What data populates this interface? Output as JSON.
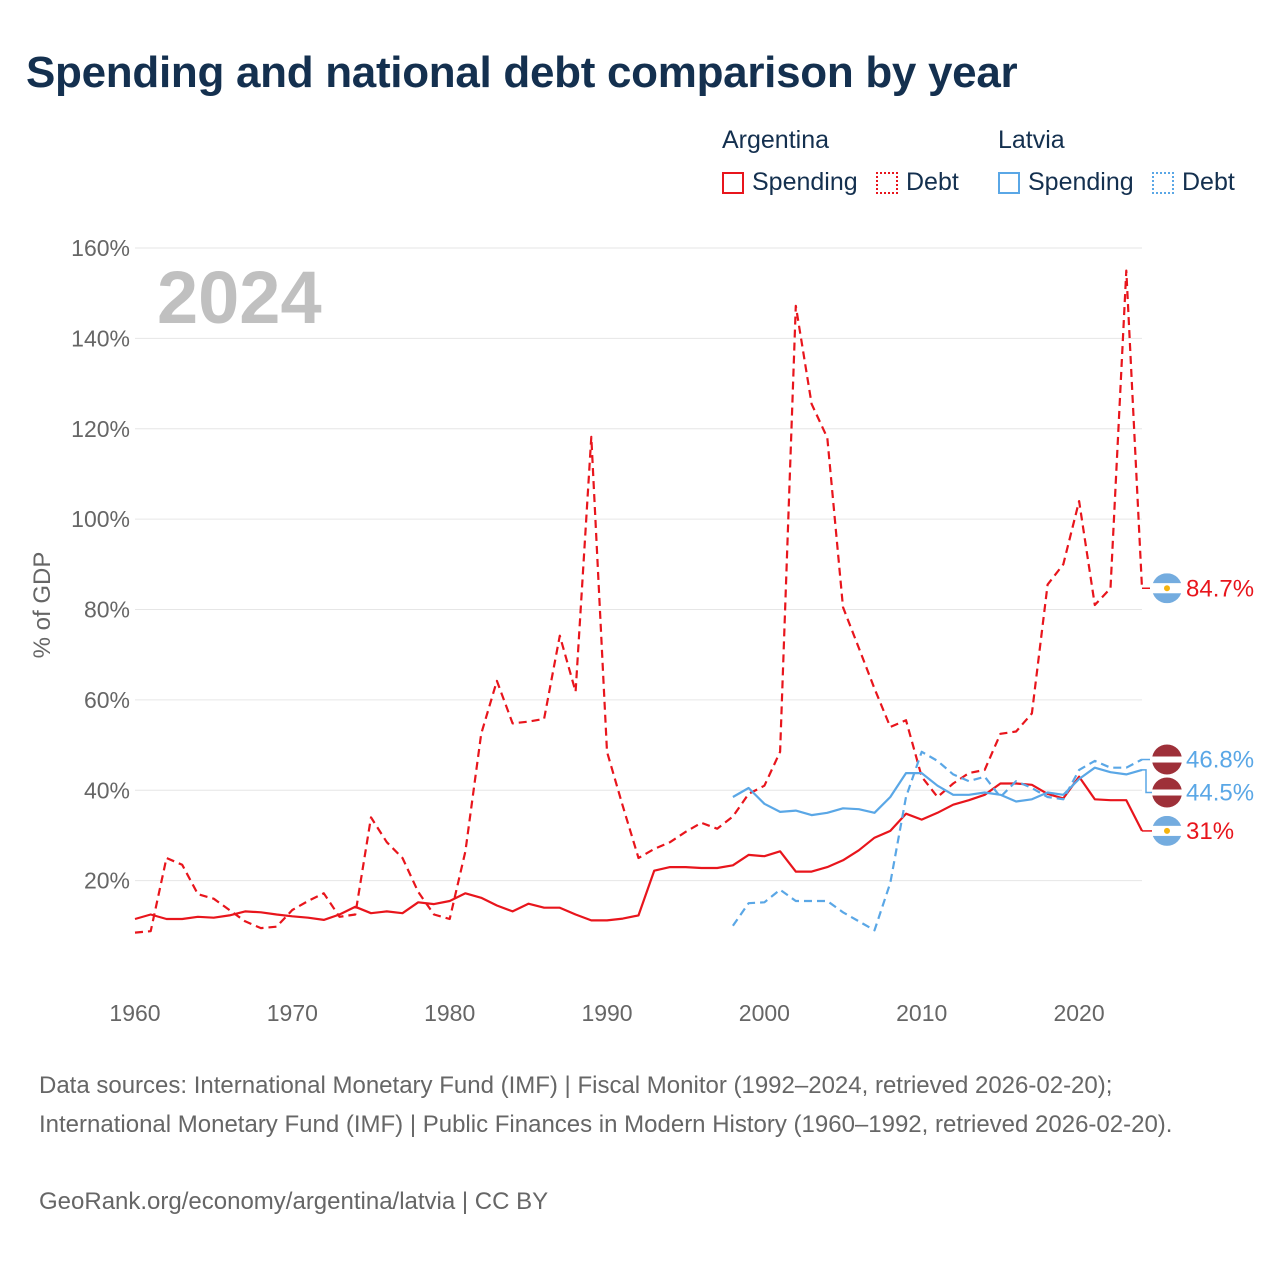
{
  "title": "Spending and national debt comparison by year",
  "legend": {
    "argentina": {
      "label": "Argentina",
      "spending": "Spending",
      "debt": "Debt"
    },
    "latvia": {
      "label": "Latvia",
      "spending": "Spending",
      "debt": "Debt"
    }
  },
  "colors": {
    "argentina": "#e8151c",
    "latvia": "#5aa7e6",
    "title": "#14304f",
    "year": "#c0c0c0",
    "grid": "#e6e6e6"
  },
  "year_overlay": "2024",
  "chart_data": {
    "type": "line",
    "title": "Spending and national debt comparison by year",
    "xlabel": "",
    "ylabel": "% of GDP",
    "xlim": [
      1960,
      2024
    ],
    "ylim": [
      0,
      160
    ],
    "x_ticks": [
      1960,
      1970,
      1980,
      1990,
      2000,
      2010,
      2020
    ],
    "y_ticks": [
      {
        "value": 20,
        "label": "20%"
      },
      {
        "value": 40,
        "label": "40%"
      },
      {
        "value": 60,
        "label": "60%"
      },
      {
        "value": 80,
        "label": "80%"
      },
      {
        "value": 100,
        "label": "100%"
      },
      {
        "value": 120,
        "label": "120%"
      },
      {
        "value": 140,
        "label": "140%"
      },
      {
        "value": 160,
        "label": "160%"
      }
    ],
    "grid": true,
    "legend_position": "top-right",
    "series": [
      {
        "name": "Argentina Spending",
        "country": "Argentina",
        "measure": "Spending",
        "style": "solid",
        "color": "#e8151c",
        "end_label": "31%",
        "x": [
          1960,
          1961,
          1962,
          1963,
          1964,
          1965,
          1966,
          1967,
          1968,
          1969,
          1970,
          1971,
          1972,
          1973,
          1974,
          1975,
          1976,
          1977,
          1978,
          1979,
          1980,
          1981,
          1982,
          1983,
          1984,
          1985,
          1986,
          1987,
          1988,
          1989,
          1990,
          1991,
          1992,
          1993,
          1994,
          1995,
          1996,
          1997,
          1998,
          1999,
          2000,
          2001,
          2002,
          2003,
          2004,
          2005,
          2006,
          2007,
          2008,
          2009,
          2010,
          2011,
          2012,
          2013,
          2014,
          2015,
          2016,
          2017,
          2018,
          2019,
          2020,
          2021,
          2022,
          2023,
          2024
        ],
        "y": [
          11.5,
          12.5,
          11.5,
          11.5,
          12,
          11.8,
          12.3,
          13.2,
          13,
          12.5,
          12.1,
          11.8,
          11.3,
          12.5,
          14.2,
          12.8,
          13.2,
          12.8,
          15.2,
          14.8,
          15.5,
          17.2,
          16.2,
          14.5,
          13.2,
          14.9,
          14,
          14,
          12.5,
          11.2,
          11.2,
          11.6,
          12.3,
          22.2,
          23,
          23,
          22.8,
          22.8,
          23.4,
          25.7,
          25.4,
          26.5,
          22,
          22,
          23,
          24.5,
          26.7,
          29.5,
          31,
          34.8,
          33.5,
          35,
          36.8,
          37.8,
          39,
          41.5,
          41.5,
          41.2,
          39.2,
          38.2,
          43,
          38,
          37.8,
          37.8,
          31
        ]
      },
      {
        "name": "Argentina Debt",
        "country": "Argentina",
        "measure": "Debt",
        "style": "dashed",
        "color": "#e8151c",
        "end_label": "84.7%",
        "x": [
          1960,
          1961,
          1962,
          1963,
          1964,
          1965,
          1966,
          1967,
          1968,
          1969,
          1970,
          1971,
          1972,
          1973,
          1974,
          1975,
          1976,
          1977,
          1978,
          1979,
          1980,
          1981,
          1982,
          1983,
          1984,
          1985,
          1986,
          1987,
          1988,
          1989,
          1990,
          1991,
          1992,
          1993,
          1994,
          1995,
          1996,
          1997,
          1998,
          1999,
          2000,
          2001,
          2002,
          2003,
          2004,
          2005,
          2006,
          2007,
          2008,
          2009,
          2010,
          2011,
          2012,
          2013,
          2014,
          2015,
          2016,
          2017,
          2018,
          2019,
          2020,
          2021,
          2022,
          2023,
          2024
        ],
        "y": [
          8.5,
          8.8,
          25,
          23.5,
          17,
          16,
          13.5,
          11,
          9.5,
          9.8,
          13.5,
          15.5,
          17.2,
          12,
          12.5,
          34,
          28.5,
          25,
          17.5,
          12.5,
          11.5,
          26.5,
          52.5,
          64.2,
          54.8,
          55.2,
          55.8,
          74.2,
          61.8,
          118.2,
          48.5,
          36.5,
          25,
          27,
          28.5,
          30.8,
          32.8,
          31.5,
          34.2,
          39.2,
          41,
          48.5,
          147.2,
          125.5,
          118,
          80.5,
          71.5,
          62.5,
          54,
          55.5,
          43,
          38.5,
          41.5,
          43.8,
          44.5,
          52.5,
          53,
          57,
          85.5,
          90,
          104,
          81,
          84.7,
          155,
          84.7
        ]
      },
      {
        "name": "Latvia Spending",
        "country": "Latvia",
        "measure": "Spending",
        "style": "solid",
        "color": "#5aa7e6",
        "end_label": "44.5%",
        "x": [
          1998,
          1999,
          2000,
          2001,
          2002,
          2003,
          2004,
          2005,
          2006,
          2007,
          2008,
          2009,
          2010,
          2011,
          2012,
          2013,
          2014,
          2015,
          2016,
          2017,
          2018,
          2019,
          2020,
          2021,
          2022,
          2023,
          2024
        ],
        "y": [
          38.5,
          40.5,
          37,
          35.2,
          35.5,
          34.5,
          35,
          36,
          35.8,
          35,
          38.5,
          43.8,
          43.8,
          41,
          39,
          39,
          39.5,
          39,
          37.5,
          38,
          39.5,
          39,
          42.5,
          45,
          44,
          43.5,
          44.5
        ]
      },
      {
        "name": "Latvia Debt",
        "country": "Latvia",
        "measure": "Debt",
        "style": "dashed",
        "color": "#5aa7e6",
        "end_label": "46.8%",
        "x": [
          1998,
          1999,
          2000,
          2001,
          2002,
          2003,
          2004,
          2005,
          2006,
          2007,
          2008,
          2009,
          2010,
          2011,
          2012,
          2013,
          2014,
          2015,
          2016,
          2017,
          2018,
          2019,
          2020,
          2021,
          2022,
          2023,
          2024
        ],
        "y": [
          10,
          15,
          15.2,
          18,
          15.5,
          15.5,
          15.5,
          13,
          11,
          9,
          19.5,
          38.5,
          48.5,
          46.5,
          43.5,
          42,
          43,
          38.5,
          42,
          40.5,
          38.5,
          38,
          44.5,
          46.5,
          45,
          45,
          46.8
        ]
      }
    ]
  },
  "sources_text": "Data sources: International Monetary Fund (IMF) | Fiscal Monitor (1992–2024, retrieved 2026-02-20); International Monetary Fund (IMF) | Public Finances in Modern History (1960–1992, retrieved 2026-02-20).",
  "credit_text": "GeoRank.org/economy/argentina/latvia | CC BY"
}
